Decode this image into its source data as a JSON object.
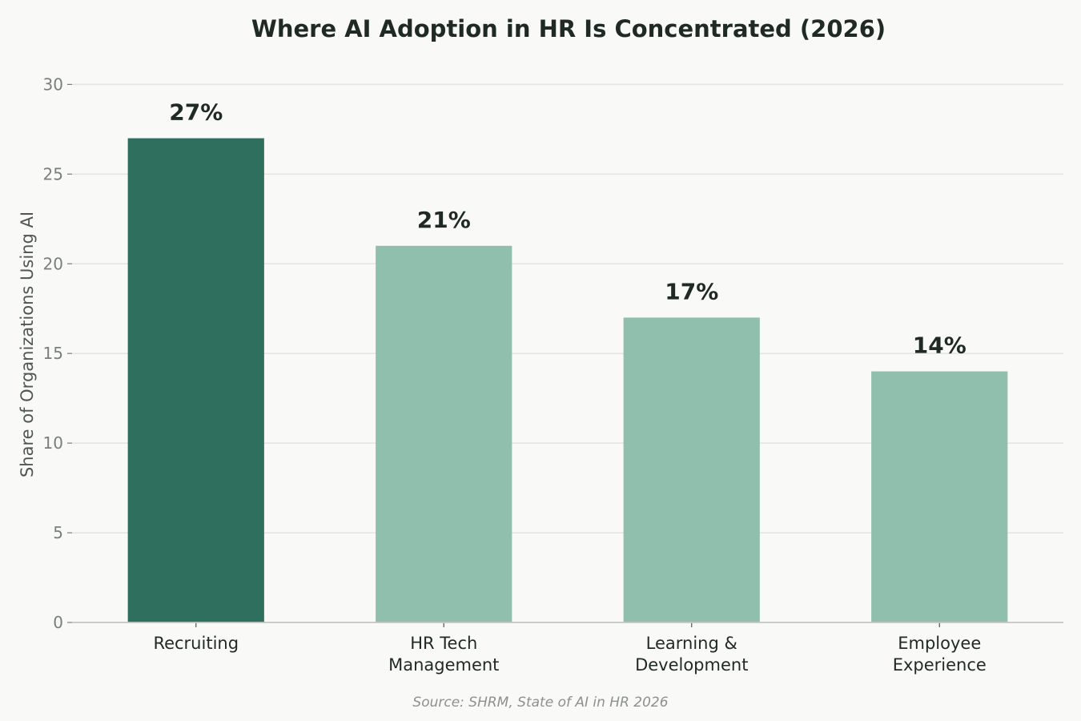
{
  "chart_data": {
    "type": "bar",
    "title": "Where AI Adoption in HR Is Concentrated (2026)",
    "xlabel": "",
    "ylabel": "Share of Organizations Using AI",
    "categories": [
      [
        "Recruiting"
      ],
      [
        "HR Tech",
        "Management"
      ],
      [
        "Learning &",
        "Development"
      ],
      [
        "Employee",
        "Experience"
      ]
    ],
    "values": [
      27,
      21,
      17,
      14
    ],
    "value_labels": [
      "27%",
      "21%",
      "17%",
      "14%"
    ],
    "highlight_index": 0,
    "ylim": [
      0,
      31
    ],
    "yticks": [
      0,
      5,
      10,
      15,
      20,
      25,
      30
    ],
    "ytick_labels": [
      "0",
      "5",
      "10",
      "15",
      "20",
      "25",
      "30"
    ],
    "grid": "y",
    "legend": "none",
    "colors": {
      "highlight_bar": "#2e6f5e",
      "bar": "#90bfae",
      "grid": "#e3e4e1",
      "axis": "#c4c6c3",
      "background": "#f9f9f7"
    }
  },
  "source_note": "Source: SHRM, State of AI in HR 2026"
}
